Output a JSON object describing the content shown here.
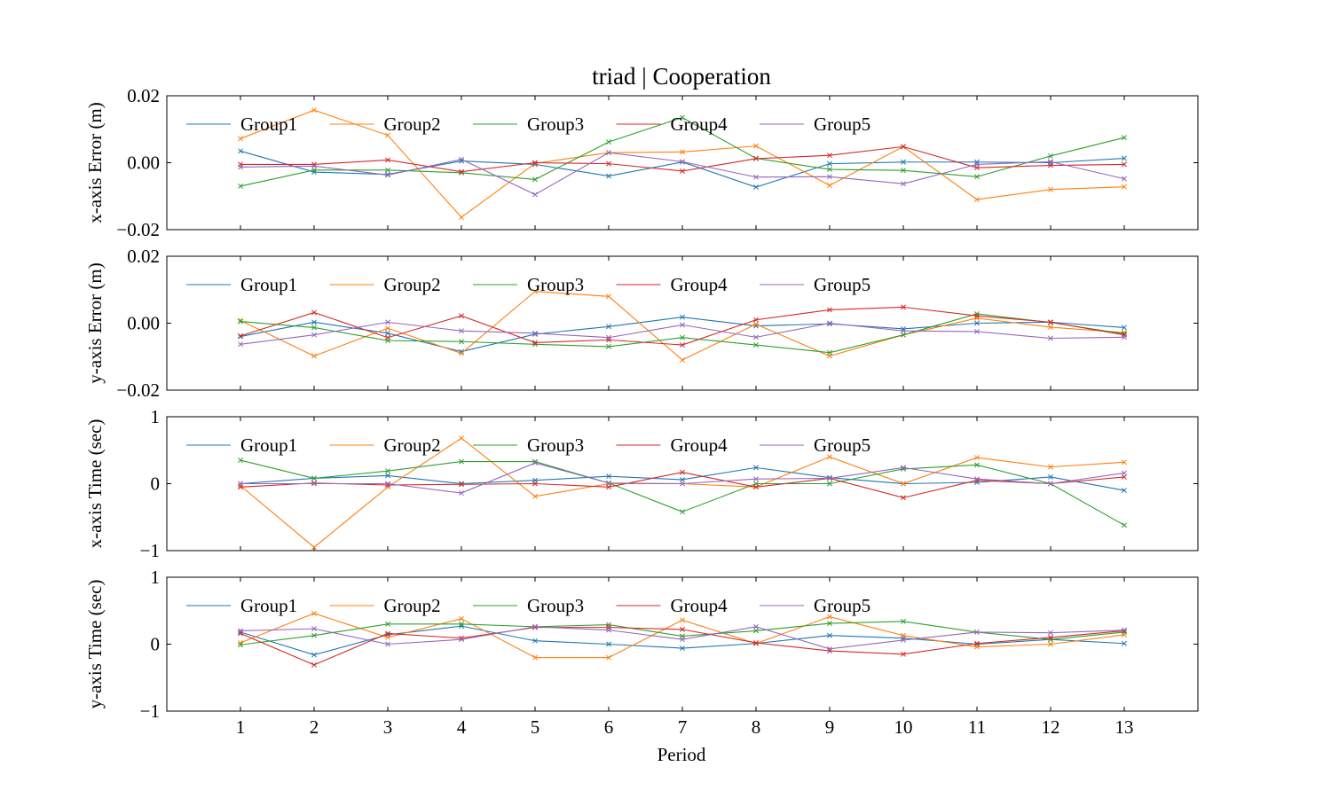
{
  "title": "triad | Cooperation",
  "chart_data": {
    "type": "line",
    "title": "triad | Cooperation",
    "xlabel": "Period",
    "x": [
      1,
      2,
      3,
      4,
      5,
      6,
      7,
      8,
      9,
      10,
      11,
      12,
      13
    ],
    "x_ticks": [
      "1",
      "2",
      "3",
      "4",
      "5",
      "6",
      "7",
      "8",
      "9",
      "10",
      "11",
      "12",
      "13"
    ],
    "xlim": [
      0,
      14
    ],
    "legend_position": "upper-left",
    "grid": false,
    "marker": "x",
    "colors": {
      "Group1": "#1f77b4",
      "Group2": "#ff7f0e",
      "Group3": "#2ca02c",
      "Group4": "#d62728",
      "Group5": "#9467bd"
    },
    "panels": [
      {
        "ylabel": "x-axis Error (m)",
        "ylim": [
          -0.02,
          0.02
        ],
        "y_ticks": [
          "−0.02",
          "0.00",
          "0.02"
        ],
        "y_tick_values": [
          -0.02,
          0,
          0.02
        ],
        "series": [
          {
            "name": "Group1",
            "values": [
              0.0035,
              -0.0028,
              -0.0035,
              0.0005,
              -0.0005,
              -0.004,
              0.0002,
              -0.0073,
              -0.0003,
              0.0002,
              0.0002,
              0.0,
              0.0013
            ]
          },
          {
            "name": "Group2",
            "values": [
              0.0072,
              0.0157,
              0.0082,
              -0.0163,
              -0.0002,
              0.003,
              0.0032,
              0.005,
              -0.0068,
              0.0048,
              -0.011,
              -0.008,
              -0.0072
            ]
          },
          {
            "name": "Group3",
            "values": [
              -0.007,
              -0.0022,
              -0.0022,
              -0.003,
              -0.005,
              0.0062,
              0.0135,
              0.0013,
              -0.002,
              -0.0023,
              -0.0042,
              0.002,
              0.0075
            ]
          },
          {
            "name": "Group4",
            "values": [
              -0.0005,
              -0.0005,
              0.0008,
              -0.0027,
              0.0,
              -0.0003,
              -0.0025,
              0.0012,
              0.0022,
              0.0048,
              -0.0015,
              -0.0008,
              -0.0005
            ]
          },
          {
            "name": "Group5",
            "values": [
              -0.0013,
              -0.001,
              -0.0037,
              0.001,
              -0.0095,
              0.003,
              0.0003,
              -0.0043,
              -0.0042,
              -0.0063,
              -0.0005,
              0.0003,
              -0.0048
            ]
          }
        ]
      },
      {
        "ylabel": "y-axis Error (m)",
        "ylim": [
          -0.02,
          0.02
        ],
        "y_ticks": [
          "−0.02",
          "0.00",
          "0.02"
        ],
        "y_tick_values": [
          -0.02,
          0,
          0.02
        ],
        "series": [
          {
            "name": "Group1",
            "values": [
              -0.004,
              0.0003,
              -0.003,
              -0.0085,
              -0.0033,
              -0.001,
              0.0018,
              -0.0008,
              -0.0002,
              -0.0017,
              0.0,
              0.0003,
              -0.0013
            ]
          },
          {
            "name": "Group2",
            "values": [
              0.0008,
              -0.0098,
              -0.0015,
              -0.009,
              0.0095,
              0.008,
              -0.011,
              -0.0003,
              -0.0098,
              -0.0035,
              0.0015,
              -0.0012,
              -0.0028
            ]
          },
          {
            "name": "Group3",
            "values": [
              0.0005,
              -0.0013,
              -0.0052,
              -0.0055,
              -0.0063,
              -0.007,
              -0.0043,
              -0.0065,
              -0.0088,
              -0.0035,
              0.0028,
              0.0002,
              -0.0032
            ]
          },
          {
            "name": "Group4",
            "values": [
              -0.0038,
              0.0032,
              -0.0043,
              0.0022,
              -0.0058,
              -0.005,
              -0.0065,
              0.001,
              0.004,
              0.0048,
              0.0022,
              0.0003,
              -0.0035
            ]
          },
          {
            "name": "Group5",
            "values": [
              -0.0063,
              -0.0035,
              0.0003,
              -0.0023,
              -0.003,
              -0.0043,
              -0.0005,
              -0.0042,
              0.0,
              -0.0023,
              -0.0025,
              -0.0045,
              -0.0042
            ]
          }
        ]
      },
      {
        "ylabel": "x-axis Time (sec)",
        "ylim": [
          -1,
          1
        ],
        "y_ticks": [
          "−1",
          "0",
          "1"
        ],
        "y_tick_values": [
          -1,
          0,
          1
        ],
        "series": [
          {
            "name": "Group1",
            "values": [
              0.0,
              0.08,
              0.12,
              0.0,
              0.05,
              0.11,
              0.06,
              0.24,
              0.09,
              0.0,
              0.02,
              0.1,
              -0.1
            ]
          },
          {
            "name": "Group2",
            "values": [
              -0.03,
              -0.95,
              -0.05,
              0.68,
              -0.19,
              0.0,
              0.0,
              -0.05,
              0.4,
              0.0,
              0.39,
              0.25,
              0.32
            ]
          },
          {
            "name": "Group3",
            "values": [
              0.35,
              0.08,
              0.19,
              0.33,
              0.33,
              0.01,
              -0.42,
              0.0,
              0.0,
              0.22,
              0.28,
              0.0,
              -0.62
            ]
          },
          {
            "name": "Group4",
            "values": [
              -0.05,
              0.01,
              -0.02,
              -0.01,
              0.0,
              -0.05,
              0.17,
              -0.05,
              0.08,
              -0.21,
              0.05,
              0.0,
              0.1
            ]
          },
          {
            "name": "Group5",
            "values": [
              0.0,
              0.0,
              0.0,
              -0.14,
              0.31,
              0.01,
              0.0,
              0.07,
              0.08,
              0.24,
              0.07,
              0.0,
              0.16
            ]
          }
        ]
      },
      {
        "ylabel": "y-axis Time (sec)",
        "ylim": [
          -1,
          1
        ],
        "y_ticks": [
          "−1",
          "0",
          "1"
        ],
        "y_tick_values": [
          -1,
          0,
          1
        ],
        "series": [
          {
            "name": "Group1",
            "values": [
              0.18,
              -0.16,
              0.14,
              0.27,
              0.05,
              0.0,
              -0.06,
              0.01,
              0.13,
              0.09,
              0.0,
              0.07,
              0.01
            ]
          },
          {
            "name": "Group2",
            "values": [
              0.02,
              0.46,
              0.1,
              0.38,
              -0.2,
              -0.2,
              0.36,
              0.01,
              0.41,
              0.13,
              -0.04,
              0.0,
              0.14
            ]
          },
          {
            "name": "Group3",
            "values": [
              -0.01,
              0.13,
              0.3,
              0.3,
              0.26,
              0.29,
              0.12,
              0.2,
              0.31,
              0.34,
              0.18,
              0.07,
              0.18
            ]
          },
          {
            "name": "Group4",
            "values": [
              0.16,
              -0.31,
              0.16,
              0.09,
              0.25,
              0.25,
              0.22,
              0.02,
              -0.1,
              -0.15,
              0.01,
              0.1,
              0.2
            ]
          },
          {
            "name": "Group5",
            "values": [
              0.2,
              0.23,
              0.0,
              0.07,
              0.26,
              0.21,
              0.07,
              0.26,
              -0.07,
              0.06,
              0.18,
              0.17,
              0.21
            ]
          }
        ]
      }
    ]
  }
}
